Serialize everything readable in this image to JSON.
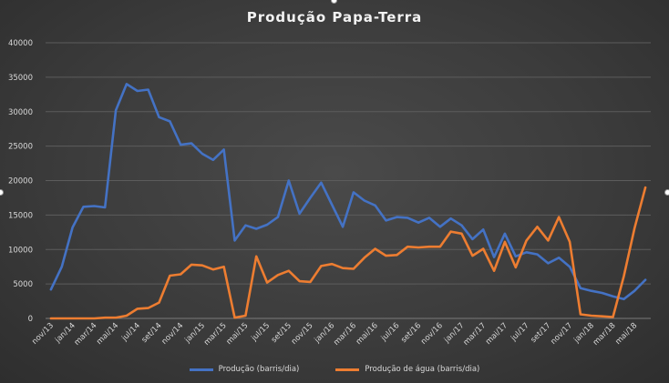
{
  "chart_data": {
    "type": "line",
    "title": "Produção Papa-Terra",
    "xlabel": "",
    "ylabel": "",
    "ylim": [
      0,
      40000
    ],
    "yticks": [
      0,
      5000,
      10000,
      15000,
      20000,
      25000,
      30000,
      35000,
      40000
    ],
    "grid": true,
    "legend_position": "bottom",
    "x": [
      "nov/13",
      "dez/13",
      "jan/14",
      "fev/14",
      "mar/14",
      "abr/14",
      "mai/14",
      "jun/14",
      "jul/14",
      "ago/14",
      "set/14",
      "out/14",
      "nov/14",
      "dez/14",
      "jan/15",
      "fev/15",
      "mar/15",
      "abr/15",
      "mai/15",
      "jun/15",
      "jul/15",
      "ago/15",
      "set/15",
      "out/15",
      "nov/15",
      "dez/15",
      "jan/16",
      "fev/16",
      "mar/16",
      "abr/16",
      "mai/16",
      "jun/16",
      "jul/16",
      "ago/16",
      "set/16",
      "out/16",
      "nov/16",
      "dez/16",
      "jan/17",
      "fev/17",
      "mar/17",
      "abr/17",
      "mai/17",
      "jun/17",
      "jul/17",
      "ago/17",
      "set/17",
      "out/17",
      "nov/17",
      "dez/17",
      "jan/18",
      "fev/18",
      "mar/18",
      "abr/18",
      "mai/18",
      "jun/18"
    ],
    "x_tick_labels": [
      "nov/13",
      "jan/14",
      "mar/14",
      "mai/14",
      "jul/14",
      "set/14",
      "nov/14",
      "jan/15",
      "mar/15",
      "mai/15",
      "jul/15",
      "set/15",
      "nov/15",
      "jan/16",
      "mar/16",
      "mai/16",
      "jul/16",
      "set/16",
      "nov/16",
      "jan/17",
      "mar/17",
      "mai/17",
      "jul/17",
      "set/17",
      "nov/17",
      "jan/18",
      "mar/18",
      "mai/18"
    ],
    "series": [
      {
        "name": "Produção (barris/dia)",
        "color": "#4472c4",
        "values": [
          4200,
          7500,
          13200,
          16200,
          16300,
          16100,
          30200,
          34000,
          33000,
          33200,
          29200,
          28600,
          25200,
          25400,
          23900,
          23000,
          24500,
          11300,
          13500,
          13000,
          13600,
          14700,
          20000,
          15200,
          17500,
          19700,
          16500,
          13300,
          18300,
          17100,
          16400,
          14200,
          14700,
          14600,
          13900,
          14600,
          13300,
          14500,
          13500,
          11500,
          12900,
          8900,
          12300,
          9000,
          9600,
          9300,
          8000,
          8800,
          7500,
          4400,
          4000,
          3700,
          3200,
          2800,
          4000,
          5600
        ]
      },
      {
        "name": "Produção de água (barris/dia)",
        "color": "#ed7d31",
        "values": [
          0,
          0,
          0,
          0,
          0,
          100,
          100,
          400,
          1400,
          1500,
          2300,
          6200,
          6400,
          7800,
          7700,
          7100,
          7500,
          100,
          400,
          9000,
          5200,
          6300,
          6900,
          5400,
          5300,
          7600,
          7900,
          7300,
          7200,
          8800,
          10100,
          9100,
          9200,
          10400,
          10300,
          10400,
          10400,
          12600,
          12300,
          9100,
          10100,
          6900,
          11100,
          7400,
          11300,
          13300,
          11300,
          14700,
          11100,
          600,
          400,
          300,
          200,
          6100,
          13100,
          19000
        ]
      }
    ]
  }
}
